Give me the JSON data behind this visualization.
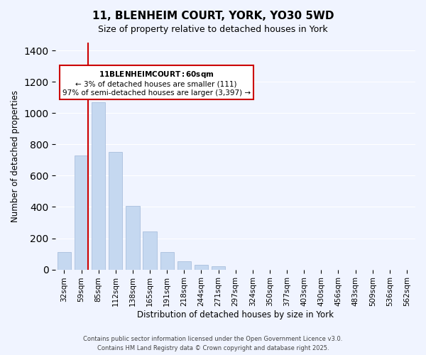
{
  "title": "11, BLENHEIM COURT, YORK, YO30 5WD",
  "subtitle": "Size of property relative to detached houses in York",
  "xlabel": "Distribution of detached houses by size in York",
  "ylabel": "Number of detached properties",
  "bar_color": "#c5d8f0",
  "bar_edge_color": "#a0b8d8",
  "categories": [
    "32sqm",
    "59sqm",
    "85sqm",
    "112sqm",
    "138sqm",
    "165sqm",
    "191sqm",
    "218sqm",
    "244sqm",
    "271sqm",
    "297sqm",
    "324sqm",
    "350sqm",
    "377sqm",
    "403sqm",
    "430sqm",
    "456sqm",
    "483sqm",
    "509sqm",
    "536sqm",
    "562sqm"
  ],
  "values": [
    110,
    730,
    1070,
    750,
    405,
    245,
    112,
    52,
    28,
    22,
    0,
    0,
    0,
    0,
    0,
    0,
    0,
    0,
    0,
    0,
    0
  ],
  "ylim": [
    0,
    1450
  ],
  "yticks": [
    0,
    200,
    400,
    600,
    800,
    1000,
    1200,
    1400
  ],
  "annotation_title": "11 BLENHEIM COURT: 60sqm",
  "annotation_line1": "← 3% of detached houses are smaller (111)",
  "annotation_line2": "97% of semi-detached houses are larger (3,397) →",
  "vline_x_index": 1,
  "vline_color": "#cc0000",
  "annotation_box_color": "#ffffff",
  "annotation_box_edge": "#cc0000",
  "footnote1": "Contains HM Land Registry data © Crown copyright and database right 2025.",
  "footnote2": "Contains public sector information licensed under the Open Government Licence v3.0.",
  "background_color": "#f0f4ff"
}
